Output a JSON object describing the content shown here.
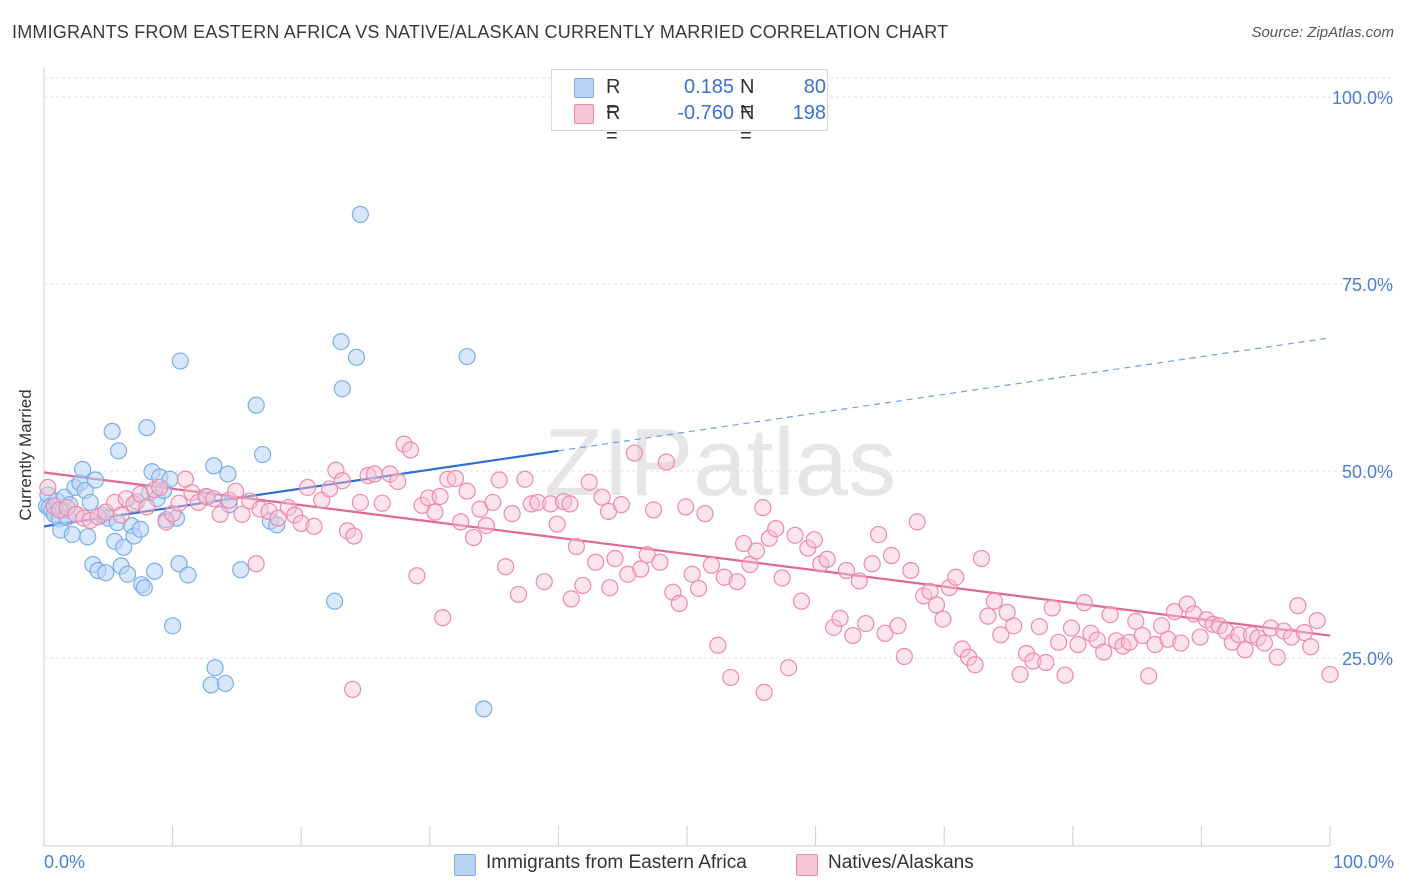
{
  "header": {
    "title": "IMMIGRANTS FROM EASTERN AFRICA VS NATIVE/ALASKAN CURRENTLY MARRIED CORRELATION CHART",
    "source": "Source: ZipAtlas.com"
  },
  "watermark": "ZIPatlas",
  "legend_top": {
    "rows": [
      {
        "r_label": "R =",
        "r_value": "0.185",
        "n_label": "N =",
        "n_value": "80",
        "color": "#a9c8f2"
      },
      {
        "r_label": "R =",
        "r_value": "-0.760",
        "n_label": "N =",
        "n_value": "198",
        "color": "#f5b6c9"
      }
    ]
  },
  "bottom_legend": {
    "items": [
      {
        "label": "Immigrants from Eastern Africa",
        "color": "#a9c8f2"
      },
      {
        "label": "Natives/Alaskans",
        "color": "#f5b6c9"
      }
    ]
  },
  "chart_data": {
    "type": "scatter",
    "title": "IMMIGRANTS FROM EASTERN AFRICA VS NATIVE/ALASKAN CURRENTLY MARRIED CORRELATION CHART",
    "xlabel": "",
    "ylabel": "Currently Married",
    "xlim": [
      0,
      100
    ],
    "ylim": [
      0,
      103
    ],
    "x_tick_labels": [
      "0.0%",
      "100.0%"
    ],
    "y_ticks": [
      {
        "value": 25,
        "label": "25.0%"
      },
      {
        "value": 50,
        "label": "50.0%"
      },
      {
        "value": 75,
        "label": "75.0%"
      },
      {
        "value": 100,
        "label": "100.0%"
      }
    ],
    "grid": true,
    "legend_position": "top-center",
    "series": [
      {
        "name": "Immigrants from Eastern Africa",
        "color": "#7aaee8",
        "fill": "#b9d3f5",
        "trend": {
          "x0": 0,
          "y0": 42.6,
          "x1": 40,
          "y1": 52.7,
          "dash_to_x": 100,
          "dash_to_y": 67.8
        },
        "points": [
          [
            0.2,
            45.3
          ],
          [
            0.3,
            46.8
          ],
          [
            0.4,
            45.1
          ],
          [
            0.6,
            44.7
          ],
          [
            0.8,
            44.2
          ],
          [
            1.0,
            46.0
          ],
          [
            1.2,
            43.6
          ],
          [
            1.3,
            42.1
          ],
          [
            1.5,
            44.8
          ],
          [
            1.6,
            46.5
          ],
          [
            1.8,
            43.8
          ],
          [
            2.0,
            45.5
          ],
          [
            2.2,
            41.5
          ],
          [
            2.4,
            47.8
          ],
          [
            2.5,
            44.2
          ],
          [
            2.8,
            48.4
          ],
          [
            3.0,
            50.2
          ],
          [
            3.2,
            47.4
          ],
          [
            3.4,
            41.2
          ],
          [
            3.6,
            45.8
          ],
          [
            3.8,
            37.5
          ],
          [
            4.0,
            48.8
          ],
          [
            4.2,
            36.7
          ],
          [
            4.5,
            44.1
          ],
          [
            4.8,
            36.4
          ],
          [
            5.0,
            43.7
          ],
          [
            5.3,
            55.3
          ],
          [
            5.5,
            40.6
          ],
          [
            5.7,
            43.1
          ],
          [
            5.8,
            52.7
          ],
          [
            6.0,
            37.3
          ],
          [
            6.2,
            39.8
          ],
          [
            6.5,
            36.2
          ],
          [
            6.8,
            42.7
          ],
          [
            7.0,
            41.3
          ],
          [
            7.2,
            45.9
          ],
          [
            7.5,
            42.2
          ],
          [
            7.6,
            34.8
          ],
          [
            7.8,
            34.4
          ],
          [
            8.0,
            55.8
          ],
          [
            8.2,
            47.1
          ],
          [
            8.4,
            49.9
          ],
          [
            8.6,
            36.6
          ],
          [
            8.8,
            46.3
          ],
          [
            9.0,
            49.2
          ],
          [
            9.3,
            47.4
          ],
          [
            9.5,
            43.5
          ],
          [
            9.8,
            48.9
          ],
          [
            10.0,
            29.3
          ],
          [
            10.3,
            43.7
          ],
          [
            10.5,
            37.6
          ],
          [
            10.6,
            64.7
          ],
          [
            11.2,
            36.1
          ],
          [
            12.7,
            46.5
          ],
          [
            13.0,
            21.4
          ],
          [
            13.2,
            50.7
          ],
          [
            13.3,
            23.7
          ],
          [
            14.1,
            21.6
          ],
          [
            14.3,
            49.6
          ],
          [
            14.4,
            45.5
          ],
          [
            15.3,
            36.8
          ],
          [
            16.5,
            58.8
          ],
          [
            17.0,
            52.2
          ],
          [
            17.6,
            43.3
          ],
          [
            18.1,
            42.8
          ],
          [
            22.6,
            32.6
          ],
          [
            23.1,
            67.3
          ],
          [
            23.2,
            61.0
          ],
          [
            24.3,
            65.2
          ],
          [
            24.6,
            84.3
          ],
          [
            32.9,
            65.3
          ],
          [
            34.2,
            18.2
          ]
        ]
      },
      {
        "name": "Natives/Alaskans",
        "color": "#ee8aa9",
        "fill": "#f7c4d4",
        "trend": {
          "x0": 0,
          "y0": 49.8,
          "x1": 100,
          "y1": 28.0
        },
        "points": [
          [
            0.3,
            47.8
          ],
          [
            0.8,
            45.3
          ],
          [
            1.2,
            44.8
          ],
          [
            1.8,
            45.1
          ],
          [
            2.5,
            44.2
          ],
          [
            3.1,
            43.7
          ],
          [
            3.6,
            43.4
          ],
          [
            4.2,
            43.9
          ],
          [
            4.8,
            44.5
          ],
          [
            5.5,
            45.8
          ],
          [
            6.0,
            44.1
          ],
          [
            6.4,
            46.3
          ],
          [
            7.0,
            45.6
          ],
          [
            7.5,
            46.9
          ],
          [
            8.0,
            45.2
          ],
          [
            8.6,
            47.5
          ],
          [
            9.0,
            47.8
          ],
          [
            9.5,
            43.2
          ],
          [
            10.0,
            44.3
          ],
          [
            10.5,
            45.7
          ],
          [
            11.0,
            48.9
          ],
          [
            11.5,
            47.1
          ],
          [
            12.0,
            45.8
          ],
          [
            12.6,
            46.6
          ],
          [
            13.2,
            46.3
          ],
          [
            13.7,
            44.2
          ],
          [
            14.4,
            46.1
          ],
          [
            14.9,
            47.3
          ],
          [
            15.4,
            44.2
          ],
          [
            16.0,
            46.0
          ],
          [
            16.5,
            37.6
          ],
          [
            16.8,
            44.9
          ],
          [
            17.5,
            44.6
          ],
          [
            18.2,
            43.7
          ],
          [
            19.0,
            45.1
          ],
          [
            19.5,
            44.1
          ],
          [
            20.0,
            43.0
          ],
          [
            20.5,
            47.8
          ],
          [
            21.0,
            42.6
          ],
          [
            21.6,
            46.1
          ],
          [
            22.2,
            47.6
          ],
          [
            22.7,
            50.1
          ],
          [
            23.2,
            48.7
          ],
          [
            23.6,
            42.0
          ],
          [
            24.1,
            41.3
          ],
          [
            24.6,
            45.8
          ],
          [
            25.2,
            49.4
          ],
          [
            25.7,
            49.6
          ],
          [
            26.3,
            45.7
          ],
          [
            26.9,
            49.6
          ],
          [
            27.5,
            48.6
          ],
          [
            28.0,
            53.6
          ],
          [
            28.5,
            52.8
          ],
          [
            29.0,
            36.0
          ],
          [
            29.4,
            45.4
          ],
          [
            29.9,
            46.4
          ],
          [
            30.4,
            44.5
          ],
          [
            30.8,
            46.6
          ],
          [
            31.4,
            48.9
          ],
          [
            32.0,
            49.0
          ],
          [
            32.4,
            43.2
          ],
          [
            32.9,
            47.3
          ],
          [
            33.4,
            41.1
          ],
          [
            33.9,
            44.9
          ],
          [
            34.4,
            42.7
          ],
          [
            34.9,
            45.8
          ],
          [
            35.4,
            48.8
          ],
          [
            35.9,
            37.2
          ],
          [
            36.4,
            44.3
          ],
          [
            36.9,
            33.5
          ],
          [
            37.4,
            48.9
          ],
          [
            37.9,
            45.6
          ],
          [
            38.4,
            45.8
          ],
          [
            38.9,
            35.2
          ],
          [
            39.4,
            45.6
          ],
          [
            39.9,
            42.9
          ],
          [
            40.4,
            45.9
          ],
          [
            40.9,
            45.6
          ],
          [
            41.4,
            39.9
          ],
          [
            41.9,
            34.7
          ],
          [
            42.4,
            48.5
          ],
          [
            42.9,
            37.8
          ],
          [
            43.4,
            46.5
          ],
          [
            43.9,
            44.6
          ],
          [
            44.4,
            38.3
          ],
          [
            44.9,
            45.5
          ],
          [
            45.4,
            36.2
          ],
          [
            45.9,
            52.4
          ],
          [
            46.4,
            36.9
          ],
          [
            46.9,
            38.8
          ],
          [
            47.4,
            44.8
          ],
          [
            47.9,
            37.8
          ],
          [
            48.4,
            51.2
          ],
          [
            48.9,
            33.8
          ],
          [
            49.4,
            32.3
          ],
          [
            49.9,
            45.2
          ],
          [
            50.4,
            36.2
          ],
          [
            50.9,
            34.3
          ],
          [
            51.4,
            44.3
          ],
          [
            51.9,
            37.4
          ],
          [
            52.4,
            26.7
          ],
          [
            52.9,
            35.8
          ],
          [
            53.4,
            22.4
          ],
          [
            53.9,
            35.2
          ],
          [
            54.4,
            40.3
          ],
          [
            54.9,
            37.5
          ],
          [
            55.4,
            39.3
          ],
          [
            55.9,
            45.1
          ],
          [
            56.4,
            41.0
          ],
          [
            56.9,
            42.3
          ],
          [
            57.4,
            35.7
          ],
          [
            57.9,
            23.7
          ],
          [
            58.4,
            41.4
          ],
          [
            58.9,
            32.6
          ],
          [
            59.4,
            39.7
          ],
          [
            59.9,
            40.8
          ],
          [
            60.4,
            37.6
          ],
          [
            60.9,
            38.2
          ],
          [
            61.4,
            29.1
          ],
          [
            61.9,
            30.3
          ],
          [
            62.4,
            36.7
          ],
          [
            62.9,
            28.0
          ],
          [
            63.4,
            35.3
          ],
          [
            63.9,
            29.6
          ],
          [
            64.4,
            37.6
          ],
          [
            64.9,
            41.5
          ],
          [
            65.4,
            28.3
          ],
          [
            65.9,
            38.7
          ],
          [
            66.4,
            29.3
          ],
          [
            66.9,
            25.2
          ],
          [
            67.4,
            36.7
          ],
          [
            67.9,
            43.2
          ],
          [
            68.4,
            33.3
          ],
          [
            68.9,
            33.9
          ],
          [
            69.4,
            32.1
          ],
          [
            69.9,
            30.2
          ],
          [
            70.4,
            34.4
          ],
          [
            70.9,
            35.8
          ],
          [
            71.4,
            26.2
          ],
          [
            71.9,
            25.1
          ],
          [
            72.4,
            24.1
          ],
          [
            72.9,
            38.3
          ],
          [
            73.4,
            30.6
          ],
          [
            73.9,
            32.6
          ],
          [
            74.4,
            28.1
          ],
          [
            74.9,
            31.1
          ],
          [
            75.4,
            29.3
          ],
          [
            75.9,
            22.8
          ],
          [
            76.4,
            25.6
          ],
          [
            76.9,
            24.6
          ],
          [
            77.4,
            29.2
          ],
          [
            77.9,
            24.4
          ],
          [
            78.4,
            31.7
          ],
          [
            78.9,
            27.1
          ],
          [
            79.4,
            22.7
          ],
          [
            79.9,
            29.0
          ],
          [
            80.4,
            26.8
          ],
          [
            80.9,
            32.4
          ],
          [
            81.4,
            28.3
          ],
          [
            81.9,
            27.4
          ],
          [
            82.4,
            25.8
          ],
          [
            82.9,
            30.8
          ],
          [
            83.4,
            27.3
          ],
          [
            83.9,
            26.6
          ],
          [
            84.4,
            27.1
          ],
          [
            84.9,
            29.9
          ],
          [
            85.4,
            28.0
          ],
          [
            85.9,
            22.6
          ],
          [
            86.4,
            26.8
          ],
          [
            86.9,
            29.3
          ],
          [
            87.4,
            27.5
          ],
          [
            87.9,
            31.2
          ],
          [
            88.4,
            27.0
          ],
          [
            88.9,
            32.2
          ],
          [
            89.4,
            30.9
          ],
          [
            89.9,
            27.8
          ],
          [
            90.4,
            30.1
          ],
          [
            90.9,
            29.5
          ],
          [
            91.4,
            29.3
          ],
          [
            91.9,
            28.6
          ],
          [
            92.4,
            27.1
          ],
          [
            92.9,
            28.1
          ],
          [
            93.4,
            26.1
          ],
          [
            93.9,
            28.1
          ],
          [
            94.4,
            27.7
          ],
          [
            94.9,
            27.0
          ],
          [
            95.4,
            29.0
          ],
          [
            95.9,
            25.1
          ],
          [
            96.4,
            28.6
          ],
          [
            97.0,
            27.8
          ],
          [
            97.5,
            32.0
          ],
          [
            98.0,
            28.4
          ],
          [
            98.5,
            26.5
          ],
          [
            99.0,
            30.0
          ],
          [
            100.0,
            22.8
          ],
          [
            24.0,
            20.8
          ],
          [
            56.0,
            20.4
          ],
          [
            41.0,
            32.9
          ],
          [
            44.0,
            34.4
          ],
          [
            31.0,
            30.4
          ]
        ]
      }
    ]
  }
}
